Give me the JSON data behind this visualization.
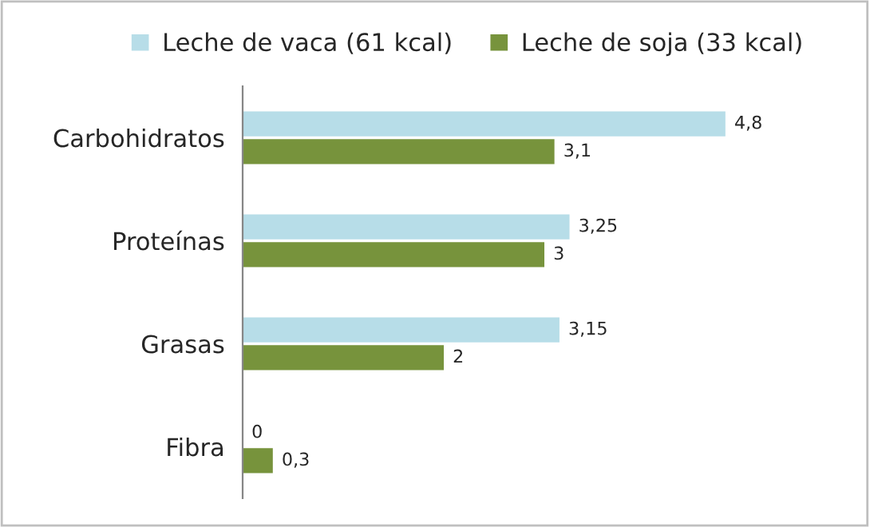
{
  "chart_data": {
    "type": "bar",
    "orientation": "horizontal",
    "legend": "top",
    "categories": [
      "Carbohidratos",
      "Proteínas",
      "Grasas",
      "Fibra"
    ],
    "series": [
      {
        "name": "Leche de vaca (61 kcal)",
        "color": "#b7dde8",
        "values": [
          4.8,
          3.25,
          3.15,
          0
        ],
        "value_labels": [
          "4,8",
          "3,25",
          "3,15",
          "0"
        ]
      },
      {
        "name": "Leche de soja (33 kcal)",
        "color": "#77933c",
        "values": [
          3.1,
          3,
          2,
          0.3
        ],
        "value_labels": [
          "3,1",
          "3",
          "2",
          "0,3"
        ]
      }
    ]
  }
}
